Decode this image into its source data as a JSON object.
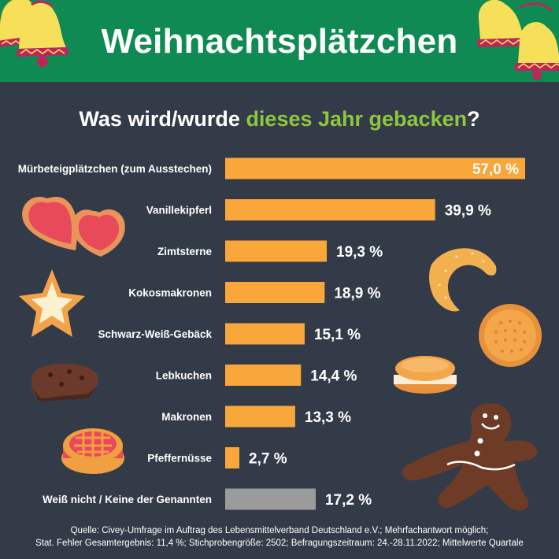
{
  "header": {
    "title": "Weihnachtsplätzchen",
    "subtitle_pre": "Was wird/wurde ",
    "subtitle_highlight": "dieses Jahr gebacken",
    "subtitle_post": "?"
  },
  "colors": {
    "header_bg": "#0f8a52",
    "background": "#343b48",
    "bar": "#f9a63a",
    "bar_neutral": "#9b9b9b",
    "highlight_text": "#8dc63f"
  },
  "chart_data": {
    "type": "bar",
    "orientation": "horizontal",
    "title": "Was wird/wurde dieses Jahr gebacken?",
    "unit": "%",
    "xlim": [
      0,
      57
    ],
    "categories": [
      "Mürbeteigplätzchen (zum Ausstechen)",
      "Vanillekipferl",
      "Zimtsterne",
      "Kokosmakronen",
      "Schwarz-Weiß-Gebäck",
      "Lebkuchen",
      "Makronen",
      "Pfeffernüsse",
      "Weiß nicht / Keine der Genannten"
    ],
    "values": [
      57.0,
      39.9,
      19.3,
      18.9,
      15.1,
      14.4,
      13.3,
      2.7,
      17.2
    ],
    "value_labels": [
      "57,0 %",
      "39,9 %",
      "19,3 %",
      "18,9 %",
      "15,1 %",
      "14,4 %",
      "13,3 %",
      "2,7 %",
      "17,2 %"
    ],
    "neutral_category": "Weiß nicht / Keine der Genannten",
    "grid": false,
    "legend": "none"
  },
  "icons": [
    "bell-icon",
    "heart-cookie-icon",
    "star-cookie-icon",
    "brownie-icon",
    "linzer-cookie-icon",
    "crescent-cookie-icon",
    "round-biscuit-icon",
    "macaron-icon",
    "gingerbread-man-icon"
  ],
  "footer": {
    "source_line1": "Quelle: Civey-Umfrage im Auftrag des Lebensmittelverband Deutschland e.V.; Mehrfachantwort möglich;",
    "source_line2": "Stat. Fehler Gesamtergebnis: 11,4 %; Stichprobengröße: 2502; Befragungszeitraum: 24.-28.11.2022; Mittelwerte Quartale"
  }
}
